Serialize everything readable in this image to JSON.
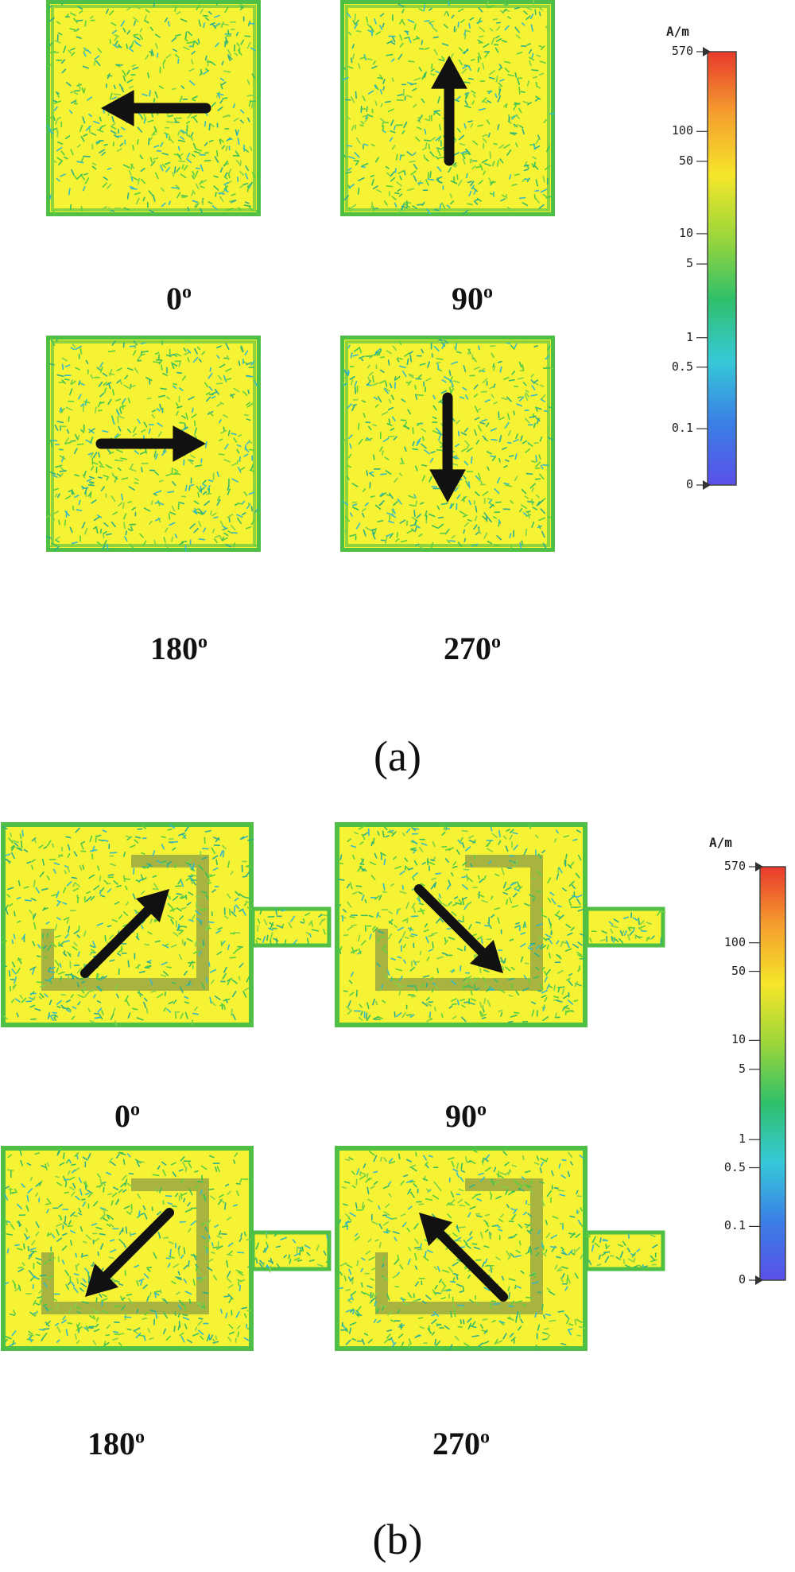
{
  "panel_a": {
    "caption": "(a)",
    "patches": [
      {
        "angle": "0",
        "arrow_direction": "left"
      },
      {
        "angle": "90",
        "arrow_direction": "up"
      },
      {
        "angle": "180",
        "arrow_direction": "right"
      },
      {
        "angle": "270",
        "arrow_direction": "down"
      }
    ],
    "colorbar": {
      "unit": "A/m",
      "ticks": [
        "570",
        "100",
        "50",
        "10",
        "5",
        "1",
        "0.5",
        "0.1",
        "0"
      ],
      "colors": [
        "#e8392c",
        "#f59f2e",
        "#f5e62a",
        "#9bd63a",
        "#2fc06a",
        "#36c9d8",
        "#3a7fe6",
        "#5a4fe8"
      ]
    }
  },
  "panel_b": {
    "caption": "(b)",
    "patches": [
      {
        "angle": "0",
        "arrow_direction": "up-right"
      },
      {
        "angle": "90",
        "arrow_direction": "down-right"
      },
      {
        "angle": "180",
        "arrow_direction": "down-left"
      },
      {
        "angle": "270",
        "arrow_direction": "up-left"
      }
    ],
    "colorbar": {
      "unit": "A/m",
      "ticks": [
        "570",
        "100",
        "50",
        "10",
        "5",
        "1",
        "0.5",
        "0.1",
        "0"
      ],
      "colors": [
        "#e8392c",
        "#f59f2e",
        "#f5e62a",
        "#9bd63a",
        "#2fc06a",
        "#36c9d8",
        "#3a7fe6",
        "#5a4fe8"
      ]
    }
  },
  "degree_symbol": "o"
}
